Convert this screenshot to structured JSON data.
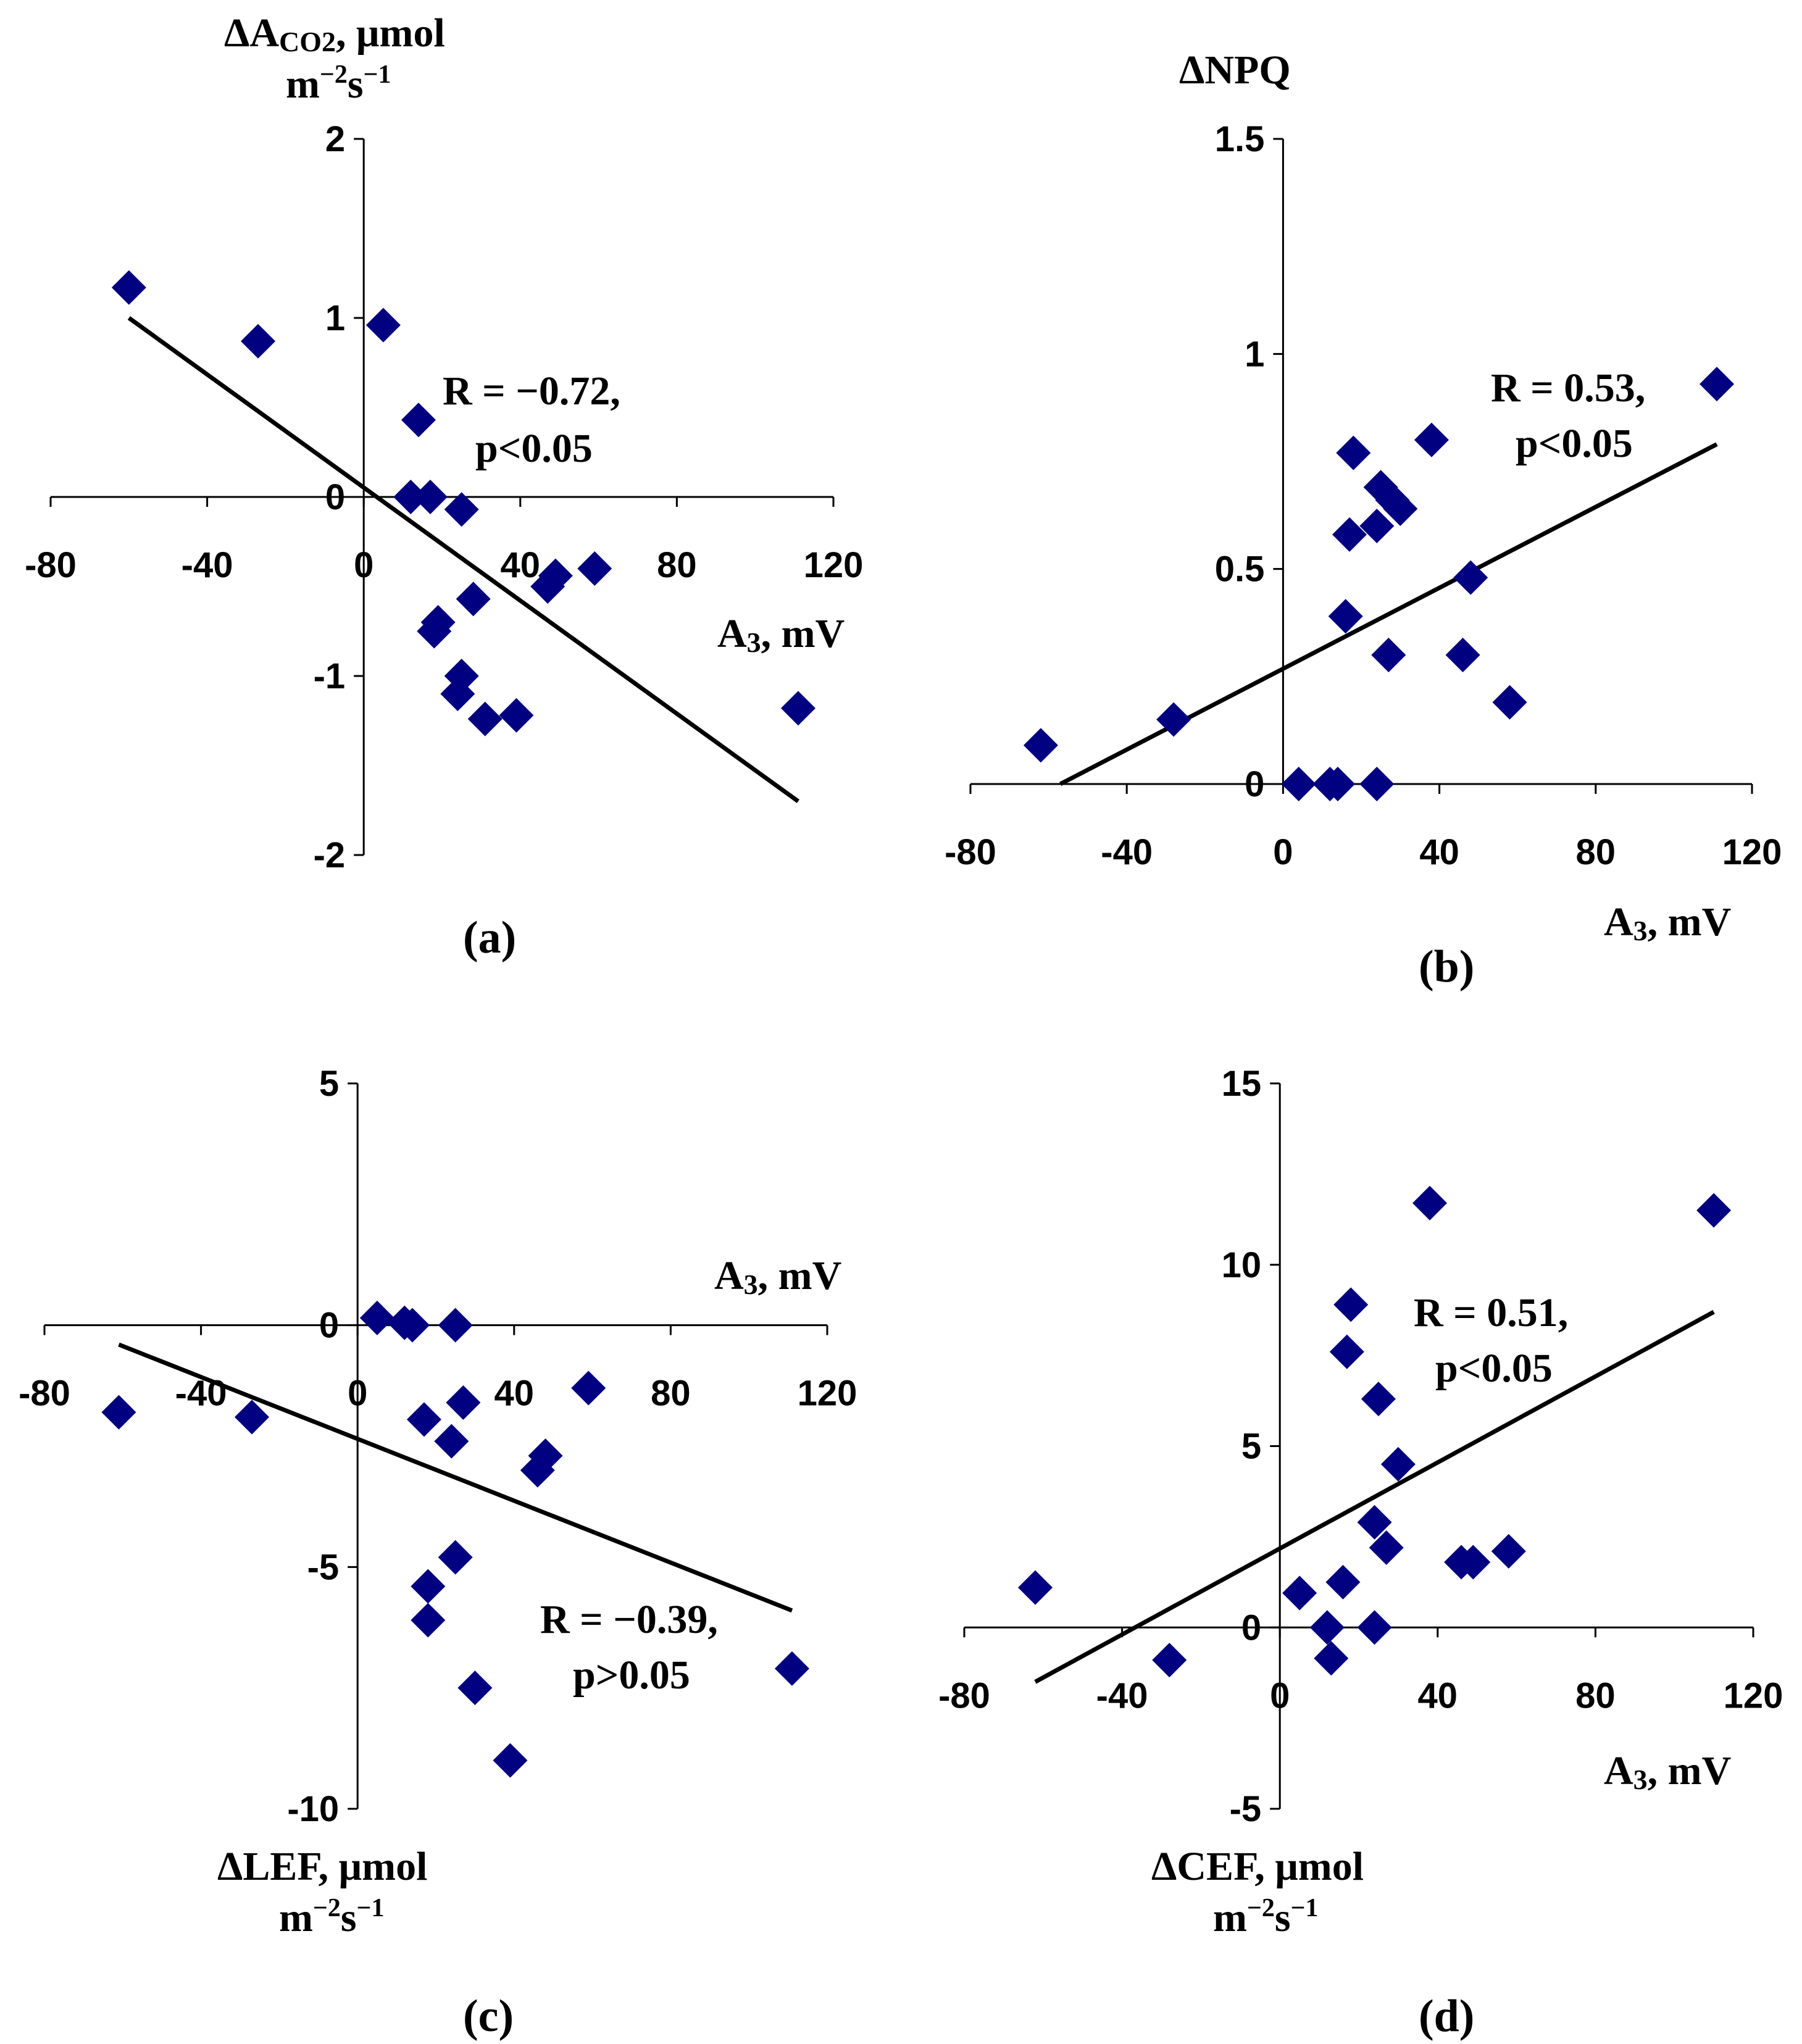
{
  "chart_data": [
    {
      "type": "scatter",
      "panel_label": "(a)",
      "xlabel": "A",
      "xlabel_sub": "3",
      "xlabel_unit": ", mV",
      "ylabel_line1_pre": "ΔA",
      "ylabel_line1_sub": "CO2",
      "ylabel_line1_post": ", μmol",
      "ylabel_line2": "m",
      "ylabel_line2_sup1": "−2",
      "ylabel_line2_mid": "s",
      "ylabel_line2_sup2": "−1",
      "xlim": [
        -80,
        120
      ],
      "ylim": [
        -2,
        2
      ],
      "xticks": [
        "-80",
        "-40",
        "0",
        "40",
        "80",
        "120"
      ],
      "yticks": [
        "-2",
        "-1",
        "0",
        "1",
        "2"
      ],
      "annotation_line1": "R = −0.72,",
      "annotation_line2": "p<0.05",
      "fit": {
        "x": [
          -60,
          111
        ],
        "y": [
          1.0,
          -1.7
        ]
      },
      "points": [
        {
          "x": -60,
          "y": 1.17
        },
        {
          "x": -27,
          "y": 0.87
        },
        {
          "x": 5,
          "y": 0.96
        },
        {
          "x": 14,
          "y": 0.43
        },
        {
          "x": 12,
          "y": 0.0
        },
        {
          "x": 17,
          "y": 0.0
        },
        {
          "x": 25,
          "y": -0.07
        },
        {
          "x": 19,
          "y": -0.7
        },
        {
          "x": 18,
          "y": -0.75
        },
        {
          "x": 25,
          "y": -1.0
        },
        {
          "x": 24,
          "y": -1.1
        },
        {
          "x": 28,
          "y": -0.57
        },
        {
          "x": 31,
          "y": -1.24
        },
        {
          "x": 39,
          "y": -1.22
        },
        {
          "x": 47,
          "y": -0.5
        },
        {
          "x": 49,
          "y": -0.44
        },
        {
          "x": 59,
          "y": -0.4
        },
        {
          "x": 111,
          "y": -1.18
        }
      ]
    },
    {
      "type": "scatter",
      "panel_label": "(b)",
      "xlabel": "A",
      "xlabel_sub": "3",
      "xlabel_unit": ", mV",
      "ylabel": "ΔNPQ",
      "xlim": [
        -80,
        120
      ],
      "ylim": [
        0,
        1.5
      ],
      "xticks": [
        "-80",
        "-40",
        "0",
        "40",
        "80",
        "120"
      ],
      "yticks": [
        "0",
        "0.5",
        "1",
        "1.5"
      ],
      "annotation_line1": "R = 0.53,",
      "annotation_line2": "p<0.05",
      "fit": {
        "x": [
          -57,
          111
        ],
        "y": [
          0.0,
          0.79
        ]
      },
      "points": [
        {
          "x": -62,
          "y": 0.09
        },
        {
          "x": -28,
          "y": 0.15
        },
        {
          "x": 4,
          "y": 0.0
        },
        {
          "x": 12,
          "y": 0.0
        },
        {
          "x": 14,
          "y": 0.0
        },
        {
          "x": 24,
          "y": 0.0
        },
        {
          "x": 18,
          "y": 0.77
        },
        {
          "x": 17,
          "y": 0.58
        },
        {
          "x": 24,
          "y": 0.6
        },
        {
          "x": 25,
          "y": 0.69
        },
        {
          "x": 28,
          "y": 0.66
        },
        {
          "x": 30,
          "y": 0.64
        },
        {
          "x": 16,
          "y": 0.39
        },
        {
          "x": 27,
          "y": 0.3
        },
        {
          "x": 38,
          "y": 0.8
        },
        {
          "x": 48,
          "y": 0.48
        },
        {
          "x": 46,
          "y": 0.3
        },
        {
          "x": 58,
          "y": 0.19
        },
        {
          "x": 111,
          "y": 0.93
        }
      ]
    },
    {
      "type": "scatter",
      "panel_label": "(c)",
      "xlabel": "A",
      "xlabel_sub": "3",
      "xlabel_unit": ", mV",
      "ylabel_line1": "ΔLEF, μmol",
      "ylabel_line2": "m",
      "ylabel_line2_sup1": "−2",
      "ylabel_line2_mid": "s",
      "ylabel_line2_sup2": "−1",
      "xlim": [
        -80,
        120
      ],
      "ylim": [
        -10,
        5
      ],
      "xticks": [
        "-80",
        "-40",
        "0",
        "40",
        "80",
        "120"
      ],
      "yticks": [
        "-10",
        "-5",
        "0",
        "5"
      ],
      "annotation_line1": "R = −0.39,",
      "annotation_line2": "p>0.05",
      "fit": {
        "x": [
          -61,
          111
        ],
        "y": [
          -0.4,
          -5.9
        ]
      },
      "points": [
        {
          "x": -61,
          "y": -1.8
        },
        {
          "x": -27,
          "y": -1.9
        },
        {
          "x": 5,
          "y": 0.15
        },
        {
          "x": 12,
          "y": 0.05
        },
        {
          "x": 14,
          "y": 0.0
        },
        {
          "x": 25,
          "y": 0.0
        },
        {
          "x": 17,
          "y": -1.95
        },
        {
          "x": 27,
          "y": -1.6
        },
        {
          "x": 24,
          "y": -2.4
        },
        {
          "x": 46,
          "y": -3.0
        },
        {
          "x": 48,
          "y": -2.7
        },
        {
          "x": 59,
          "y": -1.3
        },
        {
          "x": 25,
          "y": -4.8
        },
        {
          "x": 18,
          "y": -5.4
        },
        {
          "x": 18,
          "y": -6.1
        },
        {
          "x": 30,
          "y": -7.5
        },
        {
          "x": 39,
          "y": -9.0
        },
        {
          "x": 111,
          "y": -7.1
        }
      ]
    },
    {
      "type": "scatter",
      "panel_label": "(d)",
      "xlabel": "A",
      "xlabel_sub": "3",
      "xlabel_unit": ", mV",
      "ylabel_line1": "ΔCEF, μmol",
      "ylabel_line2": "m",
      "ylabel_line2_sup1": "−2",
      "ylabel_line2_mid": "s",
      "ylabel_line2_sup2": "−1",
      "xlim": [
        -80,
        120
      ],
      "ylim": [
        -5,
        15
      ],
      "xticks": [
        "-80",
        "-40",
        "0",
        "40",
        "80",
        "120"
      ],
      "yticks": [
        "-5",
        "0",
        "5",
        "10",
        "15"
      ],
      "annotation_line1": "R = 0.51,",
      "annotation_line2": "p<0.05",
      "fit": {
        "x": [
          -62,
          110
        ],
        "y": [
          -1.5,
          8.7
        ]
      },
      "points": [
        {
          "x": -62,
          "y": 1.1
        },
        {
          "x": -28,
          "y": -0.9
        },
        {
          "x": 5,
          "y": 0.95
        },
        {
          "x": 12,
          "y": 0.0
        },
        {
          "x": 13,
          "y": -0.85
        },
        {
          "x": 16,
          "y": 1.25
        },
        {
          "x": 18,
          "y": 8.9
        },
        {
          "x": 17,
          "y": 7.6
        },
        {
          "x": 25,
          "y": 6.3
        },
        {
          "x": 24,
          "y": 2.9
        },
        {
          "x": 27,
          "y": 2.2
        },
        {
          "x": 30,
          "y": 4.5
        },
        {
          "x": 24,
          "y": 0.0
        },
        {
          "x": 38,
          "y": 11.7
        },
        {
          "x": 46,
          "y": 1.8
        },
        {
          "x": 49,
          "y": 1.8
        },
        {
          "x": 58,
          "y": 2.1
        },
        {
          "x": 110,
          "y": 11.5
        }
      ]
    }
  ]
}
